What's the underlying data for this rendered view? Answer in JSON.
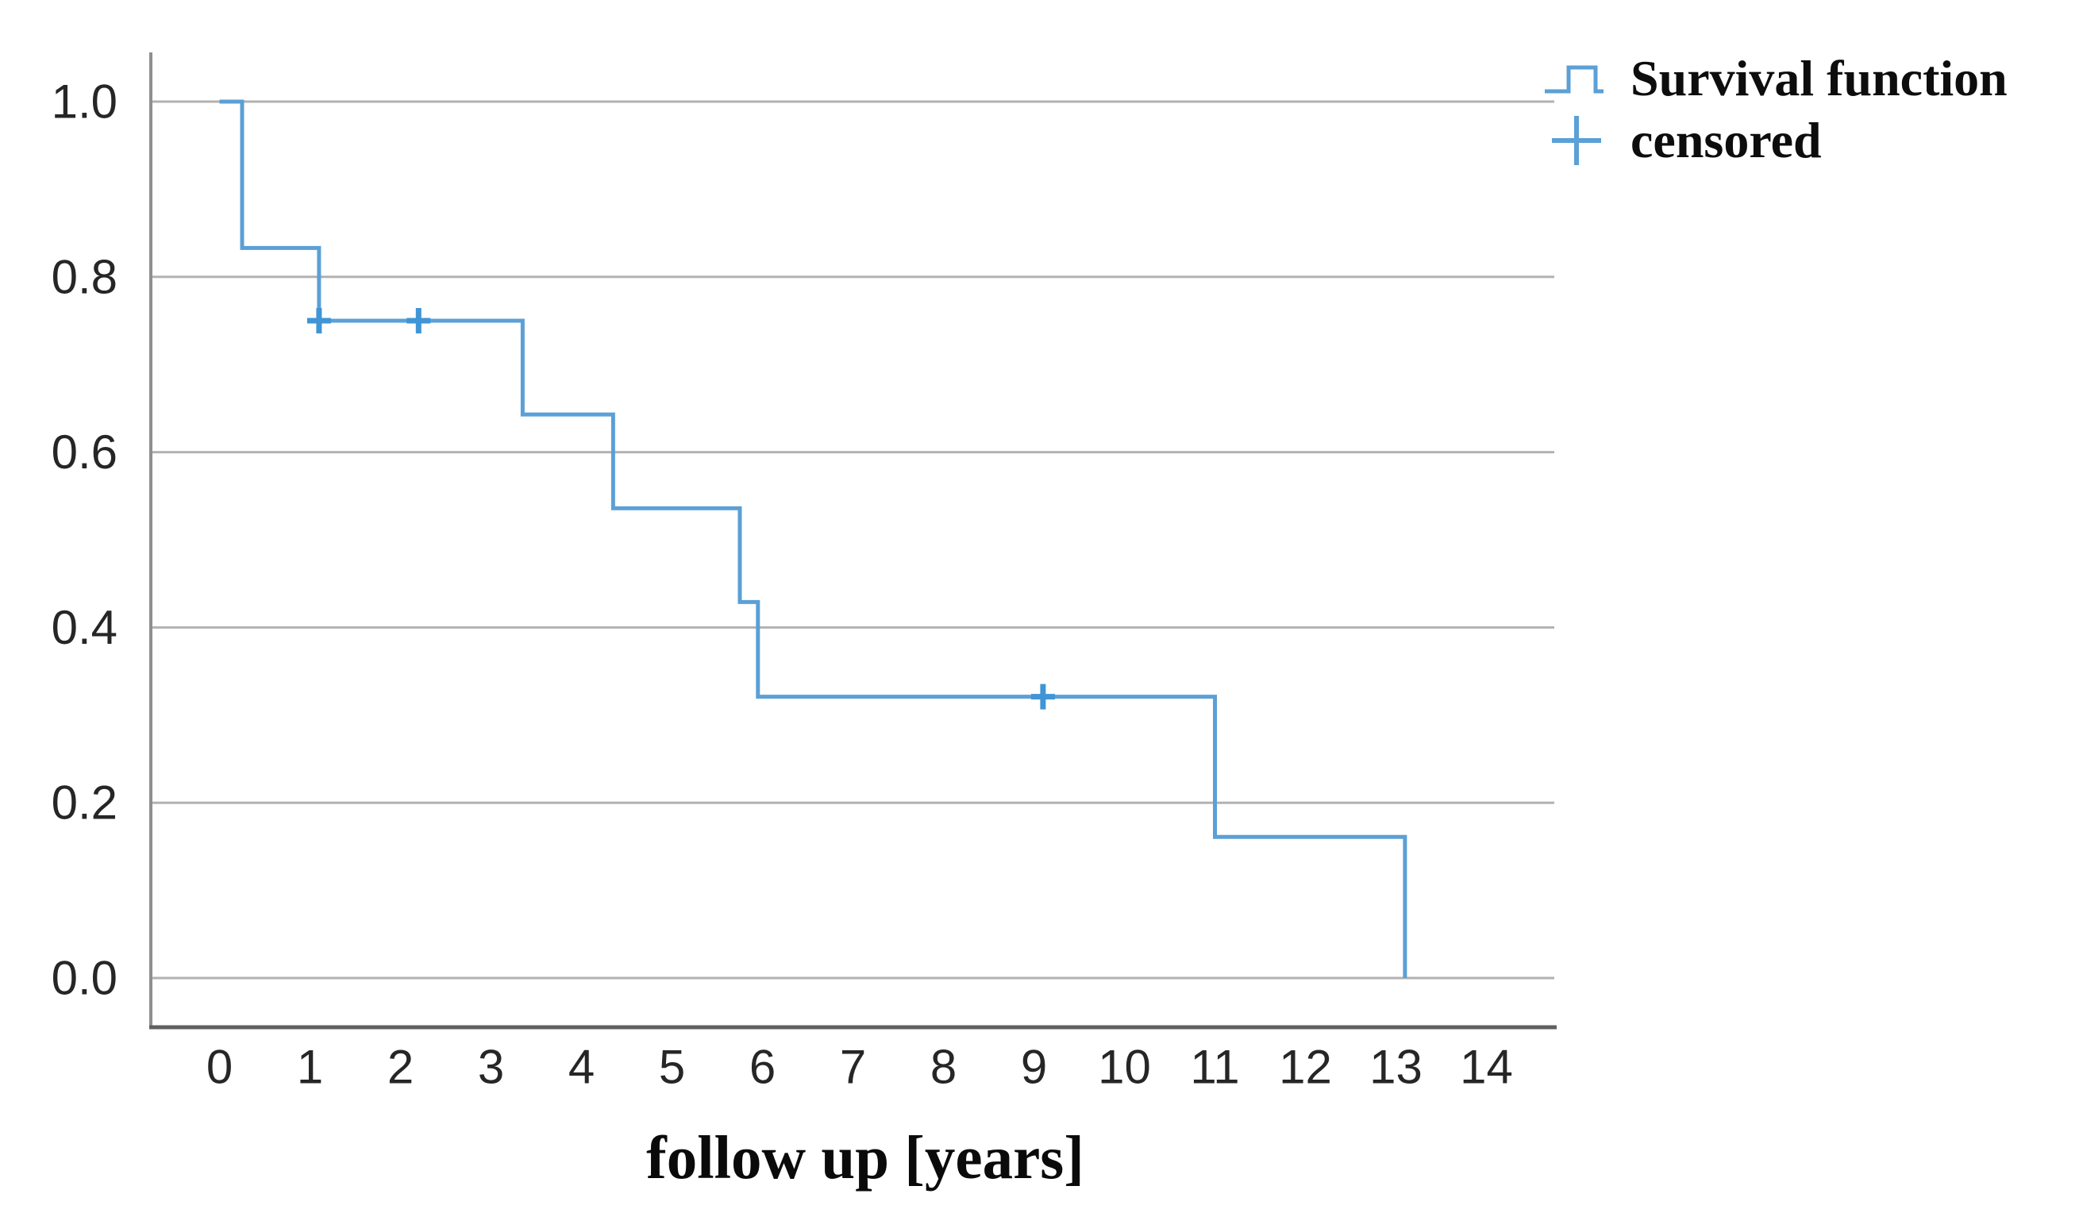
{
  "chart_data": {
    "type": "line",
    "subtype": "kaplan_meier_step_curve",
    "title": "",
    "xlabel": "follow up [years]",
    "ylabel": "",
    "xlim": [
      0,
      14
    ],
    "ylim": [
      0.0,
      1.0
    ],
    "grid": "horizontal gridlines at 0.2 intervals",
    "x_ticks": [
      "0",
      "1",
      "2",
      "3",
      "4",
      "5",
      "6",
      "7",
      "8",
      "9",
      "10",
      "11",
      "12",
      "13",
      "14"
    ],
    "y_ticks": [
      "1.0",
      "0.8",
      "0.6",
      "0.4",
      "0.2",
      "0.0"
    ],
    "y_tick_values": [
      1.0,
      0.8,
      0.6,
      0.4,
      0.2,
      0.0
    ],
    "legend": {
      "position": "top-right",
      "entries": [
        {
          "label": "Survival function",
          "marker": "step-line"
        },
        {
          "label": "censored",
          "marker": "plus-cross"
        }
      ]
    },
    "series": [
      {
        "name": "Survival function",
        "type": "step",
        "points": [
          {
            "t": 0.0,
            "s": 1.0
          },
          {
            "t": 0.25,
            "s": 0.833
          },
          {
            "t": 1.1,
            "s": 0.75
          },
          {
            "t": 3.35,
            "s": 0.643
          },
          {
            "t": 4.35,
            "s": 0.536
          },
          {
            "t": 5.75,
            "s": 0.429
          },
          {
            "t": 5.95,
            "s": 0.321
          },
          {
            "t": 11.0,
            "s": 0.161
          },
          {
            "t": 13.1,
            "s": 0.0
          }
        ]
      }
    ],
    "censored": [
      {
        "t": 1.1,
        "s": 0.75
      },
      {
        "t": 2.2,
        "s": 0.75
      },
      {
        "t": 9.1,
        "s": 0.321
      }
    ]
  },
  "colors": {
    "curve_blue": "#5ba0d6",
    "censor_blue": "#4095d5",
    "gridline_gray": "#b2b2b2",
    "y_axis_gray": "#8f8f8f",
    "x_axis_gray": "#606060",
    "label_text": "#262626"
  }
}
